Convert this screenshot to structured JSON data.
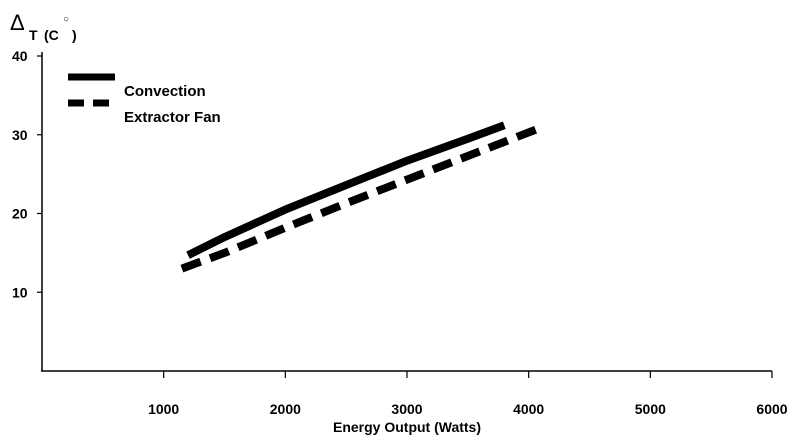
{
  "chart_data": {
    "type": "line",
    "title": "",
    "xlabel": "Energy Output (Watts)",
    "ylabel": {
      "symbol": "Δ",
      "subscript": "T",
      "unit_prefix": "(C",
      "degree": "○",
      "unit_suffix": ")"
    },
    "xlim": [
      0,
      6000
    ],
    "ylim": [
      0,
      40
    ],
    "x_ticks": [
      1000,
      2000,
      3000,
      4000,
      5000,
      6000
    ],
    "y_ticks": [
      10,
      20,
      30,
      40
    ],
    "grid": false,
    "legend_position": "top-left",
    "series": [
      {
        "name": "Convection",
        "style": "solid",
        "color": "#000000",
        "points": [
          [
            1200,
            14.7
          ],
          [
            1500,
            17.0
          ],
          [
            2000,
            20.5
          ],
          [
            2500,
            23.6
          ],
          [
            3000,
            26.7
          ],
          [
            3500,
            29.5
          ],
          [
            3800,
            31.2
          ]
        ]
      },
      {
        "name": "Extractor Fan",
        "style": "dashed",
        "color": "#000000",
        "points": [
          [
            1150,
            13.0
          ],
          [
            1500,
            15.0
          ],
          [
            2000,
            18.2
          ],
          [
            2500,
            21.3
          ],
          [
            3000,
            24.3
          ],
          [
            3500,
            27.3
          ],
          [
            4100,
            30.9
          ]
        ]
      }
    ]
  }
}
